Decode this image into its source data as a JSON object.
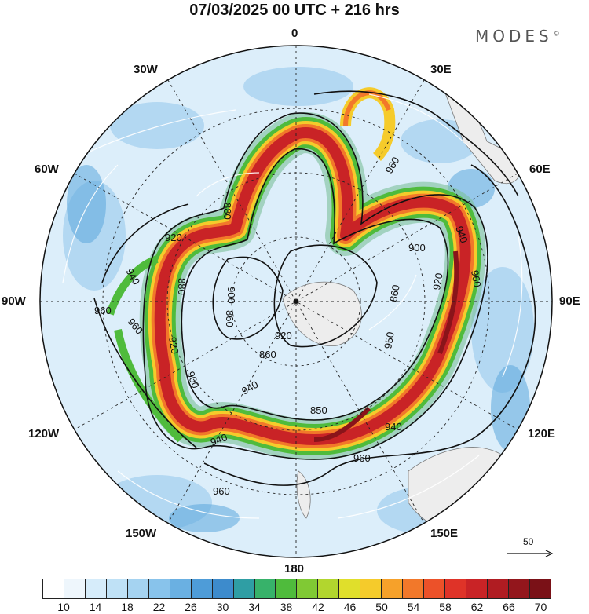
{
  "header": {
    "title": "07/03/2025  00 UTC  + 216 hrs",
    "brand": "MODES",
    "brand_mark": "©"
  },
  "longitude_labels": {
    "lon_0": "0",
    "lon_30e": "30E",
    "lon_60e": "60E",
    "lon_90e": "90E",
    "lon_120e": "120E",
    "lon_150e": "150E",
    "lon_180": "180",
    "lon_150w": "150W",
    "lon_120w": "120W",
    "lon_90w": "90W",
    "lon_60w": "60W",
    "lon_30w": "30W"
  },
  "contour_labels": [
    "960",
    "960",
    "940",
    "900",
    "860",
    "880",
    "850",
    "860",
    "920",
    "940",
    "960",
    "920",
    "940",
    "880",
    "900",
    "900",
    "860",
    "950",
    "920",
    "940",
    "960",
    "940",
    "960",
    "920",
    "960"
  ],
  "reference_vector": {
    "label": "50"
  },
  "colorbar": {
    "tick_labels": [
      "10",
      "14",
      "18",
      "22",
      "26",
      "30",
      "34",
      "38",
      "42",
      "46",
      "50",
      "54",
      "58",
      "62",
      "66",
      "70"
    ],
    "colors": [
      "#ffffff",
      "#eef6fc",
      "#d6ecfa",
      "#bfe1f6",
      "#a5d3f1",
      "#88c3eb",
      "#6ab0e2",
      "#4e9cd8",
      "#3d8bcc",
      "#2f9ea4",
      "#37b26a",
      "#4fbb3c",
      "#80c934",
      "#b2d62e",
      "#e0df2b",
      "#f5cb2b",
      "#f6a12a",
      "#f2782a",
      "#ec5129",
      "#df3328",
      "#c92326",
      "#b01c22",
      "#93161c",
      "#7a1117"
    ]
  }
}
